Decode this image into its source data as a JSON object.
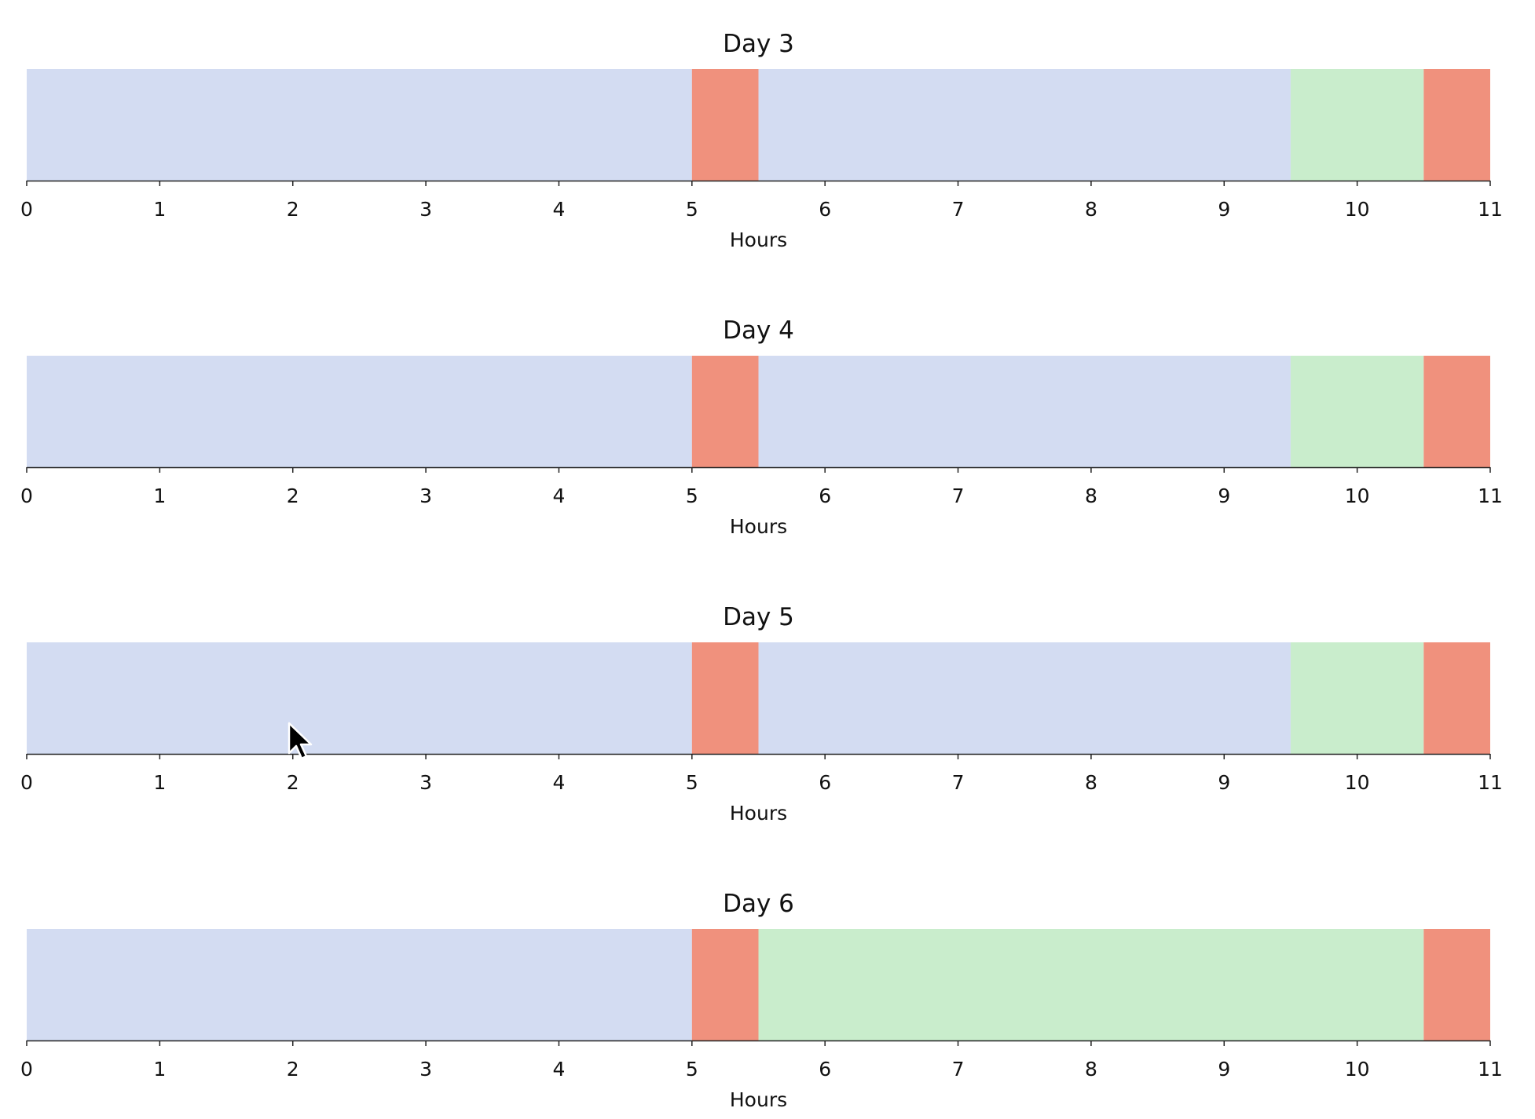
{
  "chart_data": [
    {
      "type": "timeline",
      "title": "Day 3",
      "xlabel": "Hours",
      "xlim": [
        0,
        11
      ],
      "xticks": [
        "0",
        "1",
        "2",
        "3",
        "4",
        "5",
        "6",
        "7",
        "8",
        "9",
        "10",
        "11"
      ],
      "segments": [
        {
          "start": 0,
          "end": 5,
          "color": "#d3dcf2"
        },
        {
          "start": 5,
          "end": 5.5,
          "color": "#f0917d"
        },
        {
          "start": 5.5,
          "end": 9.5,
          "color": "#d3dcf2"
        },
        {
          "start": 9.5,
          "end": 10.5,
          "color": "#c9edcc"
        },
        {
          "start": 10.5,
          "end": 11,
          "color": "#f0917d"
        }
      ]
    },
    {
      "type": "timeline",
      "title": "Day 4",
      "xlabel": "Hours",
      "xlim": [
        0,
        11
      ],
      "xticks": [
        "0",
        "1",
        "2",
        "3",
        "4",
        "5",
        "6",
        "7",
        "8",
        "9",
        "10",
        "11"
      ],
      "segments": [
        {
          "start": 0,
          "end": 5,
          "color": "#d3dcf2"
        },
        {
          "start": 5,
          "end": 5.5,
          "color": "#f0917d"
        },
        {
          "start": 5.5,
          "end": 9.5,
          "color": "#d3dcf2"
        },
        {
          "start": 9.5,
          "end": 10.5,
          "color": "#c9edcc"
        },
        {
          "start": 10.5,
          "end": 11,
          "color": "#f0917d"
        }
      ]
    },
    {
      "type": "timeline",
      "title": "Day 5",
      "xlabel": "Hours",
      "xlim": [
        0,
        11
      ],
      "xticks": [
        "0",
        "1",
        "2",
        "3",
        "4",
        "5",
        "6",
        "7",
        "8",
        "9",
        "10",
        "11"
      ],
      "segments": [
        {
          "start": 0,
          "end": 5,
          "color": "#d3dcf2"
        },
        {
          "start": 5,
          "end": 5.5,
          "color": "#f0917d"
        },
        {
          "start": 5.5,
          "end": 9.5,
          "color": "#d3dcf2"
        },
        {
          "start": 9.5,
          "end": 10.5,
          "color": "#c9edcc"
        },
        {
          "start": 10.5,
          "end": 11,
          "color": "#f0917d"
        }
      ]
    },
    {
      "type": "timeline",
      "title": "Day 6",
      "xlabel": "Hours",
      "xlim": [
        0,
        11
      ],
      "xticks": [
        "0",
        "1",
        "2",
        "3",
        "4",
        "5",
        "6",
        "7",
        "8",
        "9",
        "10",
        "11"
      ],
      "segments": [
        {
          "start": 0,
          "end": 5,
          "color": "#d3dcf2"
        },
        {
          "start": 5,
          "end": 5.5,
          "color": "#f0917d"
        },
        {
          "start": 5.5,
          "end": 10.5,
          "color": "#c9edcc"
        },
        {
          "start": 10.5,
          "end": 11,
          "color": "#f0917d"
        }
      ]
    }
  ],
  "cursor": {
    "icon": "mouse-pointer-icon"
  }
}
